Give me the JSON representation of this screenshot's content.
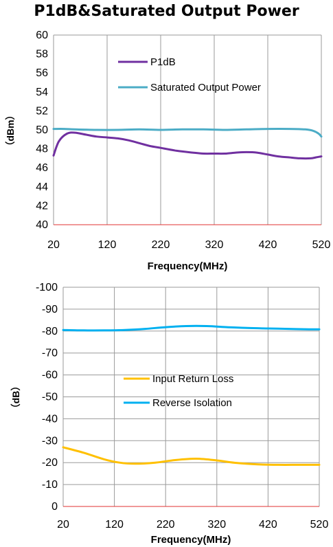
{
  "chart_data": [
    {
      "type": "line",
      "title": "P1dB&Saturated Output Power",
      "xlabel": "Frequency(MHz)",
      "ylabel": "（dBm）",
      "xlim": [
        20,
        520
      ],
      "ylim": [
        40,
        60
      ],
      "xticks": [
        "20",
        "120",
        "220",
        "320",
        "420",
        "520"
      ],
      "yticks": [
        "40",
        "42",
        "44",
        "46",
        "48",
        "50",
        "52",
        "54",
        "56",
        "58",
        "60"
      ],
      "grid": "vertical",
      "legend": "top-center",
      "series": [
        {
          "name": "P1dB",
          "color": "#7030A0",
          "x": [
            20,
            30,
            45,
            60,
            80,
            100,
            120,
            140,
            160,
            180,
            200,
            220,
            250,
            280,
            300,
            320,
            340,
            360,
            380,
            400,
            420,
            440,
            460,
            480,
            500,
            510,
            520
          ],
          "y": [
            47.3,
            48.8,
            49.6,
            49.7,
            49.5,
            49.3,
            49.2,
            49.1,
            48.9,
            48.6,
            48.3,
            48.1,
            47.8,
            47.6,
            47.5,
            47.5,
            47.5,
            47.6,
            47.65,
            47.6,
            47.4,
            47.2,
            47.1,
            47.0,
            47.0,
            47.1,
            47.2
          ]
        },
        {
          "name": "Saturated Output Power",
          "color": "#4BACC6",
          "x": [
            20,
            40,
            60,
            100,
            140,
            180,
            220,
            260,
            300,
            340,
            380,
            420,
            460,
            490,
            505,
            515,
            520
          ],
          "y": [
            50.1,
            50.1,
            50.05,
            50.0,
            50.0,
            50.05,
            50.0,
            50.05,
            50.05,
            50.0,
            50.05,
            50.1,
            50.1,
            50.05,
            49.9,
            49.6,
            49.3
          ]
        }
      ]
    },
    {
      "type": "line",
      "title": "",
      "xlabel": "Frequency(MHz)",
      "ylabel": "（dB）",
      "xlim": [
        20,
        520
      ],
      "ylim": [
        0,
        -100
      ],
      "xticks": [
        "20",
        "120",
        "220",
        "320",
        "420",
        "520"
      ],
      "yticks": [
        "0",
        "-10",
        "-20",
        "-30",
        "-40",
        "-50",
        "-60",
        "-70",
        "-80",
        "-90",
        "-100"
      ],
      "grid": "both",
      "legend": "center",
      "series": [
        {
          "name": "Input Return Loss",
          "color": "#FFC000",
          "x": [
            20,
            60,
            100,
            130,
            160,
            200,
            240,
            280,
            320,
            360,
            400,
            440,
            480,
            520
          ],
          "y": [
            -27,
            -24.5,
            -21.5,
            -20,
            -19.5,
            -20,
            -21.2,
            -21.8,
            -21,
            -19.8,
            -19.2,
            -19,
            -19,
            -19
          ]
        },
        {
          "name": "Reverse Isolation",
          "color": "#00B0F0",
          "x": [
            20,
            60,
            100,
            140,
            180,
            220,
            260,
            300,
            340,
            380,
            420,
            460,
            500,
            520
          ],
          "y": [
            -80.5,
            -80.3,
            -80.3,
            -80.5,
            -81,
            -81.8,
            -82.3,
            -82.3,
            -81.8,
            -81.4,
            -81.2,
            -81,
            -80.8,
            -80.8
          ]
        }
      ]
    }
  ]
}
